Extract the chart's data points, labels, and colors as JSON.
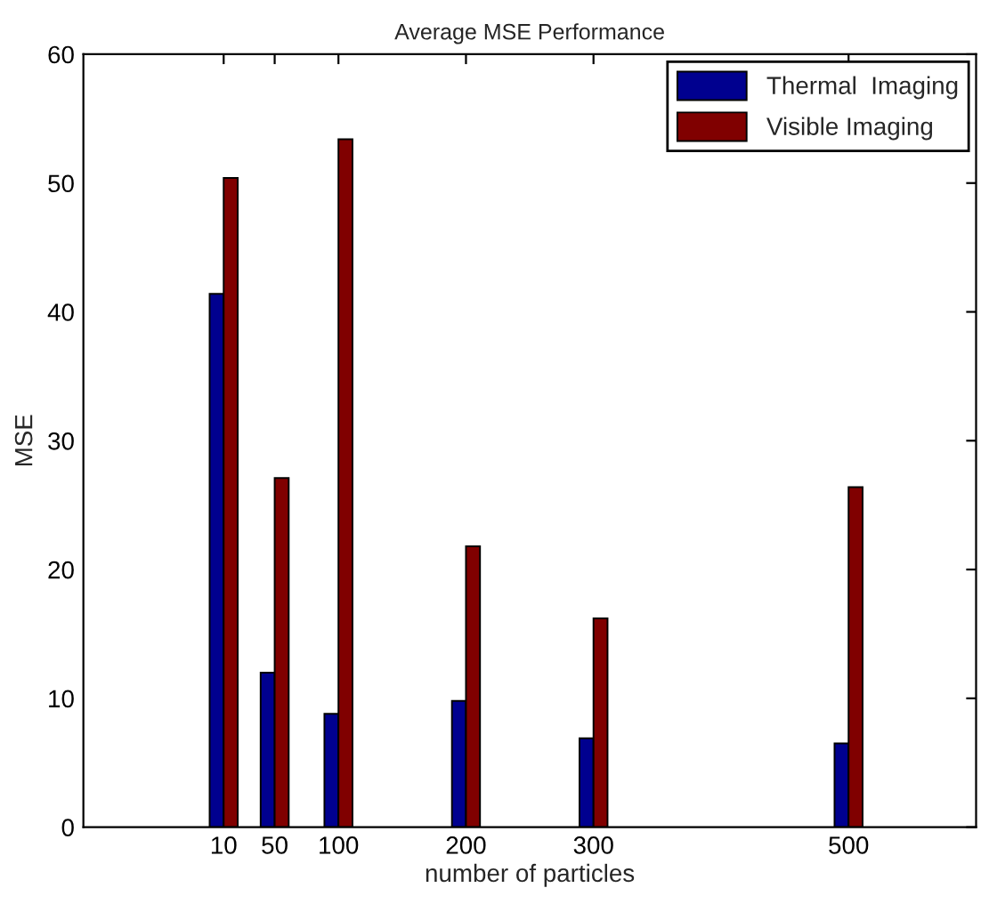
{
  "chart_data": {
    "type": "bar",
    "title": "Average MSE Performance",
    "xlabel": "number of particles",
    "ylabel": "MSE",
    "x": [
      10,
      50,
      100,
      200,
      300,
      500
    ],
    "series": [
      {
        "name": "Thermal  Imaging",
        "color": "#00008f",
        "values": [
          41.4,
          12.0,
          8.8,
          9.8,
          6.9,
          6.5
        ]
      },
      {
        "name": "Visible Imaging",
        "color": "#800000",
        "values": [
          50.4,
          27.1,
          53.4,
          21.8,
          16.2,
          26.4
        ]
      }
    ],
    "xlim": [
      -100,
      600
    ],
    "xticks": [
      10,
      50,
      100,
      200,
      300,
      500
    ],
    "ylim": [
      0,
      60
    ],
    "yticks": [
      0,
      10,
      20,
      30,
      40,
      50,
      60
    ],
    "grid": false,
    "legend": "top right"
  }
}
